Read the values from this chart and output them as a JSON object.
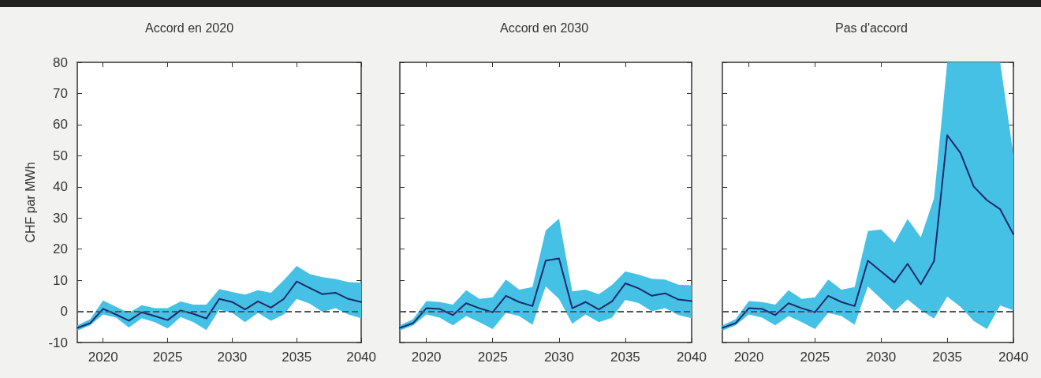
{
  "chart_data": [
    {
      "type": "line",
      "title": "Accord en 2020",
      "ylabel": "CHF par MWh",
      "x": [
        2018,
        2019,
        2020,
        2021,
        2022,
        2023,
        2024,
        2025,
        2026,
        2027,
        2028,
        2029,
        2030,
        2031,
        2032,
        2033,
        2034,
        2035,
        2036,
        2037,
        2038,
        2039,
        2040
      ],
      "series": [
        {
          "color": "#1b2a6b",
          "values": [
            -5.3,
            -3.8,
            0.8,
            -1,
            -3,
            -0.3,
            -1.5,
            -2.8,
            0.3,
            -0.8,
            -2.3,
            4,
            3,
            0.6,
            3.2,
            1.2,
            4,
            9.6,
            7.5,
            5.5,
            6,
            4,
            3
          ],
          "upper": [
            -4.5,
            -2.5,
            3.5,
            1.5,
            -0.5,
            2,
            1,
            1,
            3.2,
            2.2,
            2.2,
            7.2,
            6.2,
            5.4,
            6.8,
            6,
            10,
            14.6,
            12,
            11,
            10.4,
            9.4,
            9.2
          ],
          "lower": [
            -6.2,
            -4.5,
            -1,
            -2,
            -5.2,
            -2.2,
            -3.5,
            -5.5,
            -1.8,
            -3.5,
            -6,
            0.5,
            -0.5,
            -3.5,
            -0.5,
            -3,
            -1,
            4,
            2.5,
            -0.2,
            1,
            -1,
            -2.2
          ]
        }
      ],
      "xlim": [
        2018,
        2040
      ],
      "xticks": [
        2020,
        2025,
        2030,
        2035,
        2040
      ],
      "ylim": [
        -10,
        80
      ],
      "yticks": [
        -10,
        0,
        10,
        20,
        30,
        40,
        50,
        60,
        70,
        80
      ],
      "grid": false,
      "marker": "none",
      "line_style": "solid",
      "ref_lines": [
        {
          "axis": "y",
          "value": 0,
          "color": "#555555",
          "line_style": "dashed"
        }
      ]
    },
    {
      "type": "line",
      "title": "Accord en 2030",
      "x": [
        2018,
        2019,
        2020,
        2021,
        2022,
        2023,
        2024,
        2025,
        2026,
        2027,
        2028,
        2029,
        2030,
        2031,
        2032,
        2033,
        2034,
        2035,
        2036,
        2037,
        2038,
        2039,
        2040
      ],
      "series": [
        {
          "color": "#1b2a6b",
          "values": [
            -5.3,
            -3.8,
            1,
            0.8,
            -1.2,
            2.6,
            1,
            -0.3,
            5,
            3,
            1.7,
            16.3,
            17,
            1,
            3,
            0.6,
            3.2,
            9,
            7.4,
            5,
            5.8,
            3.8,
            3.3
          ],
          "upper": [
            -4.5,
            -2.5,
            3.3,
            3,
            2.2,
            6.8,
            4,
            4.5,
            10.2,
            7,
            7.8,
            26,
            29.8,
            6.4,
            7,
            5.5,
            8.5,
            12.8,
            11.8,
            10.5,
            10.2,
            8.6,
            8.4
          ],
          "lower": [
            -6.2,
            -4.5,
            -1,
            -2,
            -4.5,
            -1.5,
            -3.5,
            -5.7,
            -0.5,
            -1.5,
            -4.3,
            8,
            4,
            -4,
            -1,
            -3.5,
            -2,
            3.7,
            2.7,
            0,
            1,
            -1.2,
            -2.2
          ]
        }
      ],
      "xlim": [
        2018,
        2040
      ],
      "xticks": [
        2020,
        2025,
        2030,
        2035,
        2040
      ],
      "ylim": [
        -10,
        80
      ],
      "yticks": [
        -10,
        0,
        10,
        20,
        30,
        40,
        50,
        60,
        70,
        80
      ],
      "tick_labels": "x",
      "grid": false,
      "marker": "none",
      "line_style": "solid",
      "ref_lines": [
        {
          "axis": "y",
          "value": 0,
          "color": "#555555",
          "line_style": "dashed"
        }
      ]
    },
    {
      "type": "line",
      "title": "Pas d'accord",
      "x": [
        2018,
        2019,
        2020,
        2021,
        2022,
        2023,
        2024,
        2025,
        2026,
        2027,
        2028,
        2029,
        2030,
        2031,
        2032,
        2033,
        2034,
        2035,
        2036,
        2037,
        2038,
        2039,
        2040
      ],
      "series": [
        {
          "color": "#1b2a6b",
          "values": [
            -5.3,
            -3.8,
            1,
            0.8,
            -1.2,
            2.6,
            1,
            -0.3,
            5,
            3,
            1.7,
            16.3,
            12.8,
            9.3,
            15.3,
            8.7,
            16.1,
            56.6,
            50.9,
            40.1,
            35.7,
            32.8,
            24.8
          ],
          "upper": [
            -4.5,
            -2.5,
            3.3,
            3,
            2.2,
            6.8,
            4,
            4.5,
            10.2,
            7,
            7.8,
            25.8,
            26.3,
            22,
            29.7,
            23.8,
            36.3,
            80,
            80,
            80,
            80,
            80,
            50.3
          ],
          "lower": [
            -6.2,
            -4.5,
            -1,
            -2,
            -4.5,
            -1.5,
            -3.5,
            -5.7,
            -0.5,
            -1.5,
            -4.3,
            8,
            4,
            0,
            3.8,
            0.4,
            -2.3,
            4.7,
            1.5,
            -3.1,
            -5.7,
            1.9,
            0.3
          ]
        }
      ],
      "xlim": [
        2018,
        2040
      ],
      "xticks": [
        2020,
        2025,
        2030,
        2035,
        2040
      ],
      "ylim": [
        -10,
        80
      ],
      "yticks": [
        -10,
        0,
        10,
        20,
        30,
        40,
        50,
        60,
        70,
        80
      ],
      "tick_labels": "x",
      "grid": false,
      "marker": "none",
      "line_style": "solid",
      "ref_lines": [
        {
          "axis": "y",
          "value": 0,
          "color": "#555555",
          "line_style": "dashed"
        }
      ]
    }
  ]
}
